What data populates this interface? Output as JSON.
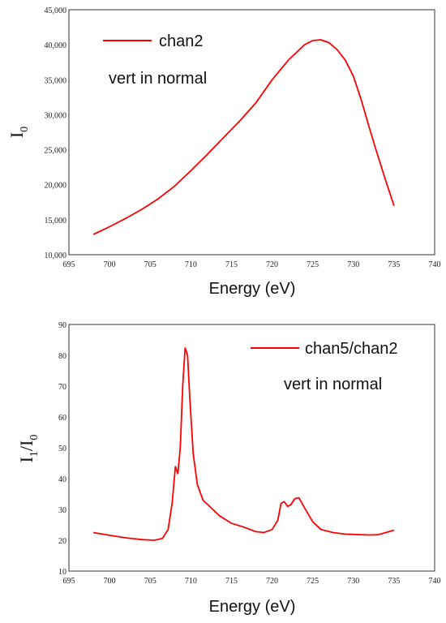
{
  "colors": {
    "series": "#ff0000",
    "axis": "#333333"
  },
  "chart_data": [
    {
      "type": "line",
      "title": "",
      "xlabel": "Energy (eV)",
      "ylabel": "I0",
      "xlim": [
        695,
        740
      ],
      "ylim": [
        10000,
        45000
      ],
      "x_ticks": [
        695,
        700,
        705,
        710,
        715,
        720,
        725,
        730,
        735,
        740
      ],
      "y_ticks": [
        "10,000",
        "15,000",
        "20,000",
        "25,000",
        "30,000",
        "35,000",
        "40,000",
        "45,000"
      ],
      "y_tick_values": [
        10000,
        15000,
        20000,
        25000,
        30000,
        35000,
        40000,
        45000
      ],
      "legend": "top-left",
      "annotation": "vert in normal",
      "series": [
        {
          "name": "chan2",
          "x": [
            698,
            700,
            702,
            704,
            706,
            708,
            710,
            712,
            714,
            716,
            718,
            720,
            722,
            724,
            725,
            726,
            727,
            728,
            729,
            730,
            731,
            732,
            733,
            734,
            735
          ],
          "y": [
            12900,
            14000,
            15200,
            16500,
            18000,
            19800,
            22000,
            24300,
            26700,
            29100,
            31700,
            35000,
            37800,
            40000,
            40600,
            40700,
            40300,
            39300,
            37800,
            35500,
            32000,
            28000,
            24200,
            20500,
            17000
          ]
        }
      ]
    },
    {
      "type": "line",
      "title": "",
      "xlabel": "Energy (eV)",
      "ylabel": "I1/I0",
      "xlim": [
        695,
        740
      ],
      "ylim": [
        10,
        90
      ],
      "x_ticks": [
        695,
        700,
        705,
        710,
        715,
        720,
        725,
        730,
        735,
        740
      ],
      "y_ticks": [
        "10",
        "20",
        "30",
        "40",
        "50",
        "60",
        "70",
        "80",
        "90"
      ],
      "y_tick_values": [
        10,
        20,
        30,
        40,
        50,
        60,
        70,
        80,
        90
      ],
      "legend": "top-right",
      "annotation": "vert in normal",
      "series": [
        {
          "name": "chan5/chan2",
          "x": [
            698,
            700,
            702,
            704,
            705.5,
            706.5,
            707.2,
            707.7,
            708.1,
            708.4,
            708.7,
            709.0,
            709.3,
            709.6,
            709.9,
            710.3,
            710.8,
            711.5,
            712.5,
            713.5,
            715,
            716.5,
            718,
            719,
            720,
            720.7,
            721.1,
            721.5,
            721.9,
            722.3,
            722.8,
            723.3,
            724,
            725,
            726,
            727.5,
            729,
            731,
            732,
            733,
            734,
            735
          ],
          "y": [
            22.5,
            21.6,
            20.8,
            20.2,
            20.0,
            20.6,
            23.5,
            32.0,
            44.0,
            41.5,
            50.0,
            70.0,
            82.5,
            80.0,
            65.0,
            48.0,
            38.0,
            33.0,
            30.5,
            28.0,
            25.5,
            24.3,
            22.8,
            22.5,
            23.5,
            26.5,
            32.0,
            32.5,
            31.0,
            31.5,
            33.5,
            33.8,
            30.5,
            26.0,
            23.5,
            22.5,
            22.0,
            21.8,
            21.7,
            21.8,
            22.5,
            23.3
          ]
        }
      ]
    }
  ]
}
